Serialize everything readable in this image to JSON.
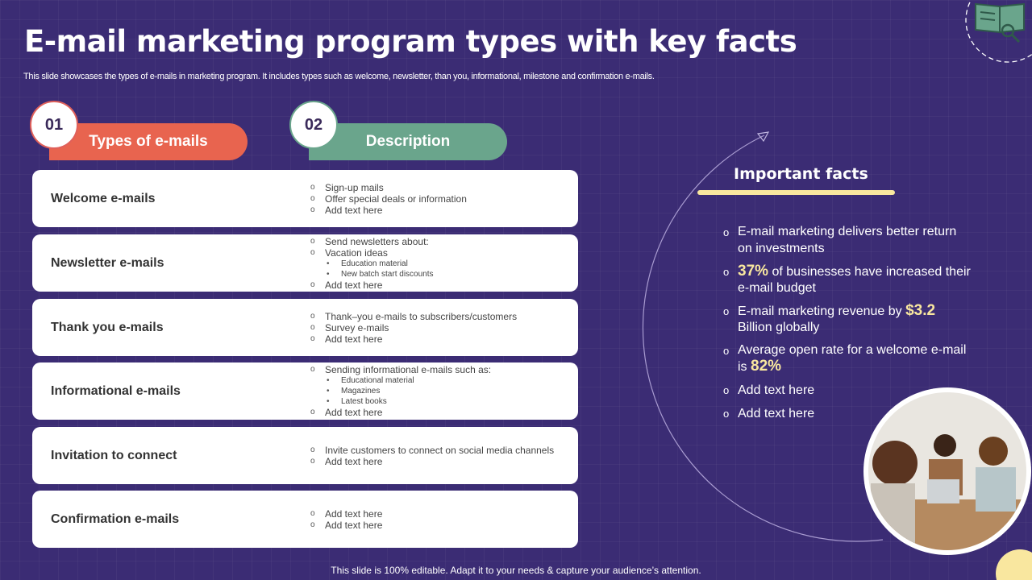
{
  "title": "E-mail marketing program types with key facts",
  "subtitle": "This slide showcases the types of e-mails in marketing program. It includes types such as welcome, newsletter, than you,  informational, milestone and confirmation e-mails.",
  "headers": [
    {
      "num": "01",
      "label": "Types of e-mails",
      "color": "#e8644f"
    },
    {
      "num": "02",
      "label": "Description",
      "color": "#6aa58c"
    }
  ],
  "rows": [
    {
      "name": "Welcome e-mails",
      "items": [
        {
          "t": "Sign-up mails"
        },
        {
          "t": "Offer special deals or information"
        },
        {
          "t": "Add text here"
        }
      ]
    },
    {
      "name": "Newsletter e-mails",
      "items": [
        {
          "t": "Send newsletters about:"
        },
        {
          "t": "Vacation ideas"
        },
        {
          "t": "Education  material",
          "sub": true
        },
        {
          "t": "New batch start discounts",
          "sub": true
        },
        {
          "t": "Add text here"
        }
      ]
    },
    {
      "name": "Thank you e-mails",
      "items": [
        {
          "t": "Thank–you e-mails to subscribers/customers"
        },
        {
          "t": "Survey  e-mails"
        },
        {
          "t": "Add text here"
        }
      ]
    },
    {
      "name": "Informational e-mails",
      "items": [
        {
          "t": "Sending informational e-mails such as:"
        },
        {
          "t": "Educational material",
          "sub": true
        },
        {
          "t": "Magazines",
          "sub": true
        },
        {
          "t": "Latest books",
          "sub": true
        },
        {
          "t": "Add text here"
        }
      ]
    },
    {
      "name": "Invitation to connect",
      "items": [
        {
          "t": "Invite customers to connect on social media channels"
        },
        {
          "t": "Add text here"
        }
      ]
    },
    {
      "name": "Confirmation e-mails",
      "items": [
        {
          "t": "Add text here"
        },
        {
          "t": "Add text here"
        }
      ]
    }
  ],
  "facts": {
    "title": "Important facts",
    "items": [
      {
        "pre": "E-mail marketing delivers better return on investments",
        "hl": "",
        "post": ""
      },
      {
        "pre": "",
        "hl": "37%",
        "post": " of businesses have increased their e-mail budget"
      },
      {
        "pre": "E-mail marketing revenue by ",
        "hl": "$3.2",
        "post": " Billion globally"
      },
      {
        "pre": "Average open rate for a welcome e-mail is ",
        "hl": "82%",
        "post": ""
      },
      {
        "pre": "Add text here",
        "hl": "",
        "post": ""
      },
      {
        "pre": "Add text here",
        "hl": "",
        "post": ""
      }
    ]
  },
  "footer": "This slide is 100% editable. Adapt it to your needs & capture your audience’s attention.",
  "icons": {
    "top_right": "book-search-icon",
    "photo": "team-meeting-photo"
  }
}
